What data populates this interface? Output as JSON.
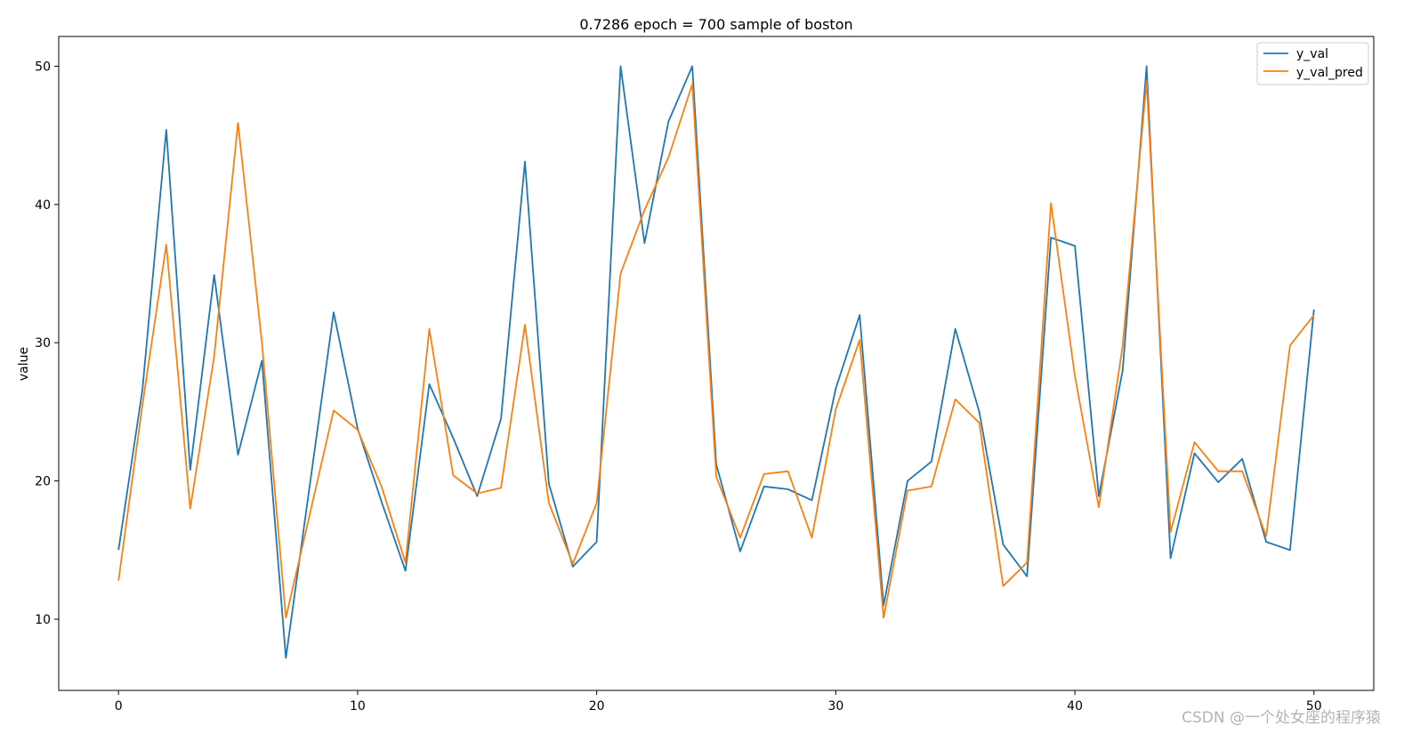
{
  "chart_data": {
    "type": "line",
    "title": "0.7286 epoch = 700 sample of boston",
    "xlabel": "",
    "ylabel": "value",
    "xlim": [
      -2.5,
      52.5
    ],
    "ylim": [
      4.85,
      52.15
    ],
    "xticks": [
      0,
      10,
      20,
      30,
      40,
      50
    ],
    "yticks": [
      10,
      20,
      30,
      40,
      50
    ],
    "grid": false,
    "legend_position": "top-right",
    "x": [
      0,
      1,
      2,
      3,
      4,
      5,
      6,
      7,
      8,
      9,
      10,
      11,
      12,
      13,
      14,
      15,
      16,
      17,
      18,
      19,
      20,
      21,
      22,
      23,
      24,
      25,
      26,
      27,
      28,
      29,
      30,
      31,
      32,
      33,
      34,
      35,
      36,
      37,
      38,
      39,
      40,
      41,
      42,
      43,
      44,
      45,
      46,
      47,
      48,
      49,
      50
    ],
    "series": [
      {
        "name": "y_val",
        "color": "#1f77b4",
        "values": [
          15.0,
          26.6,
          45.4,
          20.8,
          34.9,
          21.9,
          28.7,
          7.2,
          19.7,
          32.2,
          23.8,
          18.5,
          13.5,
          27.0,
          23.1,
          18.9,
          24.5,
          43.1,
          19.8,
          13.8,
          15.6,
          50.0,
          37.2,
          46.0,
          50.0,
          21.2,
          14.9,
          19.6,
          19.4,
          18.6,
          26.7,
          32.0,
          11.0,
          20.0,
          21.4,
          31.0,
          25.0,
          15.4,
          13.1,
          37.6,
          37.0,
          18.9,
          28.0,
          50.0,
          14.4,
          22.0,
          19.9,
          21.6,
          15.6,
          15.0,
          32.4
        ]
      },
      {
        "name": "y_val_pred",
        "color": "#ff7f0e",
        "values": [
          12.8,
          25.5,
          37.1,
          18.0,
          29.0,
          45.9,
          30.0,
          10.1,
          17.6,
          25.1,
          23.7,
          19.6,
          14.1,
          31.0,
          20.4,
          19.1,
          19.5,
          31.3,
          18.4,
          14.0,
          18.4,
          35.0,
          39.6,
          43.4,
          48.7,
          20.3,
          15.9,
          20.5,
          20.7,
          15.9,
          25.2,
          30.2,
          10.1,
          19.3,
          19.6,
          25.9,
          24.2,
          12.4,
          14.1,
          40.1,
          27.6,
          18.1,
          29.8,
          48.9,
          16.3,
          22.8,
          20.7,
          20.7,
          16.0,
          29.8,
          32.0
        ]
      }
    ]
  },
  "watermark": "CSDN @一个处女座的程序猿"
}
